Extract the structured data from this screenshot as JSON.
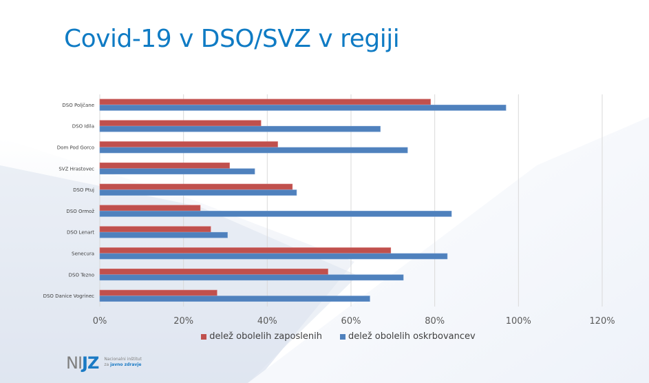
{
  "slide": {
    "title": "Covid-19 v DSO/SVZ v regiji",
    "logo": {
      "mark_left": "NI",
      "mark_right": "JZ",
      "line1": "Nacionalni inštitut",
      "line2_prefix": "za",
      "line2_bold": "javno zdravje"
    }
  },
  "colors": {
    "title": "#0f7bc4",
    "series_employees": "#c0504d",
    "series_residents": "#4f81bd",
    "gridline": "#d9d9d9"
  },
  "chart_data": {
    "type": "bar",
    "orientation": "horizontal",
    "title": "",
    "xlabel": "",
    "ylabel": "",
    "categories": [
      "DSO Poljčane",
      "DSO Idila",
      "Dom Pod Gorco",
      "SVZ Hrastovec",
      "DSO Ptuj",
      "DSO Ormož",
      "DSO Lenart",
      "Senecura",
      "DSO Tezno",
      "DSO Danice Vogrinec"
    ],
    "series": [
      {
        "name": "delež obolelih zaposlenih",
        "color": "#c0504d",
        "values": [
          79,
          38.5,
          42.5,
          31,
          46,
          24,
          26.5,
          69.5,
          54.5,
          28
        ]
      },
      {
        "name": "delež obolelih oskrbovancev",
        "color": "#4f81bd",
        "values": [
          97,
          67,
          73.5,
          37,
          47,
          84,
          30.5,
          83,
          72.5,
          64.5
        ]
      }
    ],
    "xlim": [
      0,
      120
    ],
    "x_ticks": [
      0,
      20,
      40,
      60,
      80,
      100,
      120
    ],
    "x_tick_labels": [
      "0%",
      "20%",
      "40%",
      "60%",
      "80%",
      "100%",
      "120%"
    ],
    "grid": true,
    "legend_position": "bottom"
  }
}
